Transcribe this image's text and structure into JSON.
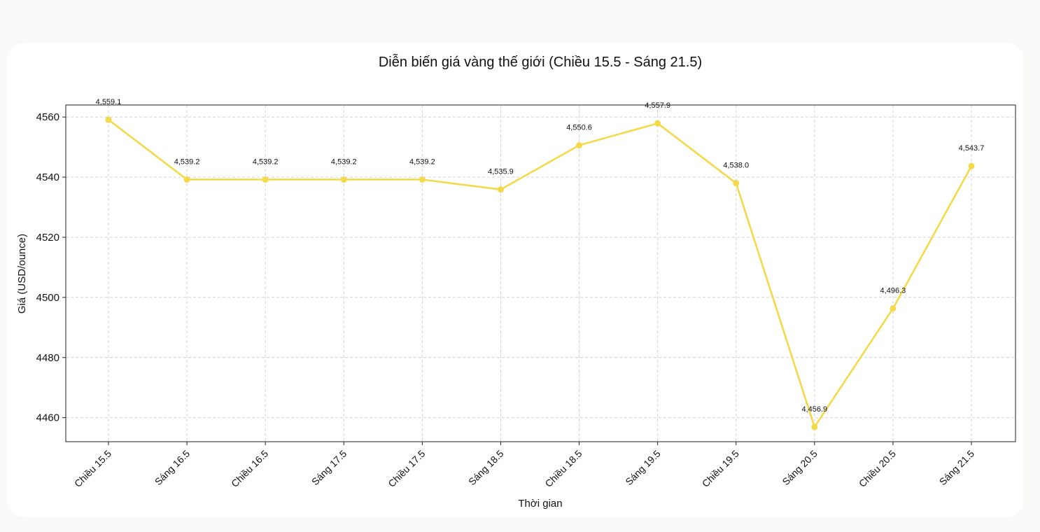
{
  "chart_data": {
    "type": "line",
    "title": "Diễn biến giá vàng thế giới (Chiều 15.5 - Sáng 21.5)",
    "xlabel": "Thời gian",
    "ylabel": "Giá (USD/ounce)",
    "categories": [
      "Chiều 15.5",
      "Sáng 16.5",
      "Chiều 16.5",
      "Sáng 17.5",
      "Chiều 17.5",
      "Sáng 18.5",
      "Chiều 18.5",
      "Sáng 19.5",
      "Chiều 19.5",
      "Sáng 20.5",
      "Chiều 20.5",
      "Sáng 21.5"
    ],
    "series": [
      {
        "values": [
          4559.1,
          4539.2,
          4539.2,
          4539.2,
          4539.2,
          4535.9,
          4550.6,
          4557.9,
          4538.0,
          4456.9,
          4496.3,
          4543.7
        ],
        "labels": [
          "4,559.1",
          "4,539.2",
          "4,539.2",
          "4,539.2",
          "4,539.2",
          "4,535.9",
          "4,550.6",
          "4,557.9",
          "4,538.0",
          "4,456.9",
          "4,496.3",
          "4,543.7"
        ],
        "color": "#f4d94a"
      }
    ],
    "yticks": [
      4460,
      4480,
      4500,
      4520,
      4540,
      4560
    ],
    "ylim": [
      4452,
      4564
    ],
    "grid": true,
    "grid_style": "dashed",
    "markers": true
  }
}
